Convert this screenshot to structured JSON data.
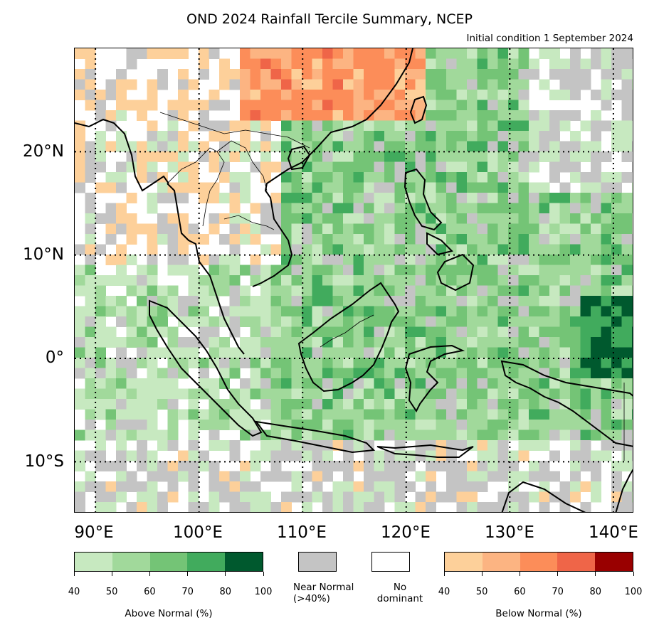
{
  "title": "OND 2024 Rainfall Tercile Summary, NCEP",
  "subtitle": "Initial condition 1 September 2024",
  "map": {
    "lon_range": [
      88,
      142
    ],
    "lat_range": [
      -15,
      30
    ],
    "lat_labels": [
      "20°N",
      "10°N",
      "0°",
      "10°S"
    ],
    "lon_labels": [
      "90°E",
      "100°E",
      "110°E",
      "120°E",
      "130°E",
      "140°E"
    ],
    "grid_lines_dotted": true
  },
  "legend": {
    "above": {
      "label": "Above Normal (%)",
      "ticks": [
        "40",
        "50",
        "60",
        "70",
        "80",
        "100"
      ],
      "colors": [
        "#c7e9c0",
        "#a1d99b",
        "#74c476",
        "#41ab5d",
        "#00592e"
      ]
    },
    "near": {
      "label": "Near Normal\n(>40%)",
      "color": "#c4c4c4"
    },
    "none": {
      "label": "No\ndominant",
      "color": "#ffffff"
    },
    "below": {
      "label": "Below Normal (%)",
      "ticks": [
        "40",
        "50",
        "60",
        "70",
        "80",
        "100"
      ],
      "colors": [
        "#fdd09a",
        "#fcb482",
        "#fc8d59",
        "#ef6548",
        "#990000"
      ]
    }
  }
}
